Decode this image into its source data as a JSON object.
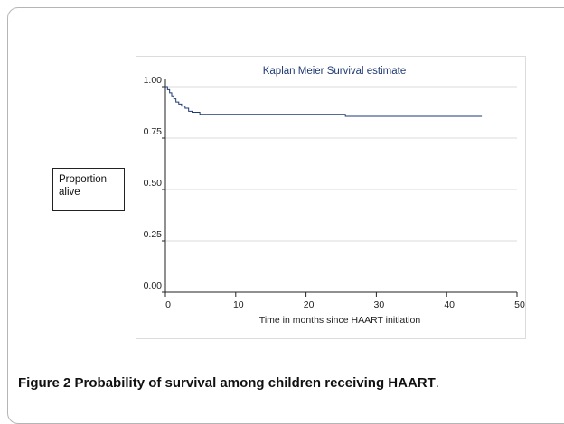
{
  "chart_data": {
    "type": "line",
    "title": "Kaplan Meier Survival estimate",
    "xlabel": "Time in months since HAART initiation",
    "ylabel": "Proportion alive",
    "xlim": [
      0,
      50
    ],
    "ylim": [
      0,
      1
    ],
    "xticks": [
      "0",
      "10",
      "20",
      "30",
      "40",
      "50"
    ],
    "yticks": [
      "0.00",
      "0.25",
      "0.50",
      "0.75",
      "1.00"
    ],
    "grid": true,
    "step": true,
    "series": [
      {
        "x": [
          0,
          0.3,
          0.6,
          0.9,
          1.2,
          1.5,
          1.9,
          2.3,
          2.8,
          3.3,
          3.8,
          4.9,
          25.6,
          45
        ],
        "y": [
          1.0,
          0.985,
          0.97,
          0.955,
          0.94,
          0.925,
          0.915,
          0.905,
          0.895,
          0.88,
          0.875,
          0.865,
          0.855,
          0.855
        ]
      }
    ]
  },
  "caption": {
    "label": "Figure 2",
    "text": " Probability of survival among children receiving HAART",
    "suffix": "."
  },
  "style": {
    "line_color": "#1f3a73",
    "grid_color": "#cfcfcf",
    "axis_color": "#222222"
  }
}
